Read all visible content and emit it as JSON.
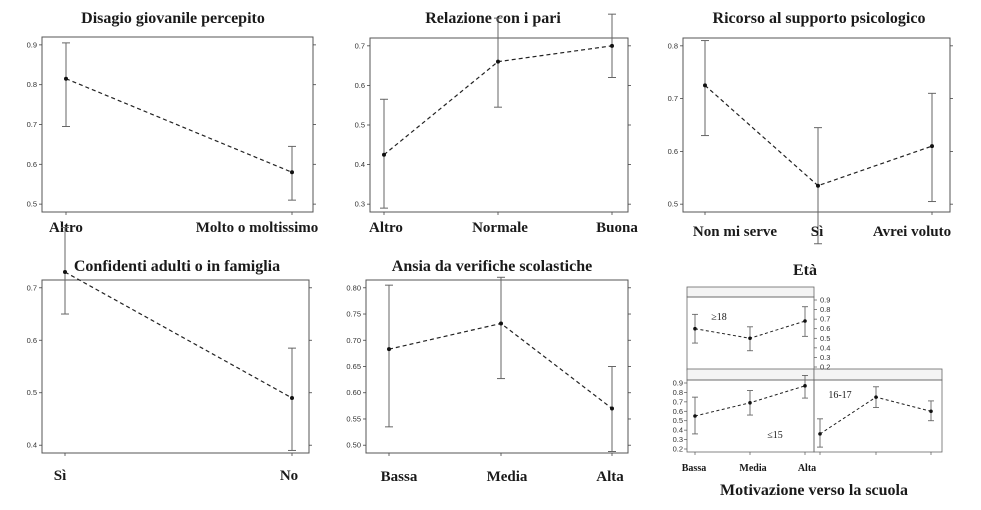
{
  "chart_data": [
    {
      "type": "line",
      "title": "Disagio giovanile percepito",
      "categories": [
        "Altro",
        "Molto o moltissimo"
      ],
      "series": [
        {
          "values": [
            0.815,
            0.58
          ],
          "lower": [
            0.695,
            0.51
          ],
          "upper": [
            0.905,
            0.645
          ]
        }
      ],
      "ylim": [
        0.5,
        0.9
      ],
      "yticks": [
        "0.5",
        "0.6",
        "0.7",
        "0.8",
        "0.9"
      ]
    },
    {
      "type": "line",
      "title": "Relazione con i pari",
      "categories": [
        "Altro",
        "Normale",
        "Buona"
      ],
      "series": [
        {
          "values": [
            0.425,
            0.66,
            0.7
          ],
          "lower": [
            0.29,
            0.545,
            0.62
          ],
          "upper": [
            0.565,
            0.77,
            0.78
          ]
        }
      ],
      "ylim": [
        0.3,
        0.7
      ],
      "yticks": [
        "0.3",
        "0.4",
        "0.5",
        "0.6",
        "0.7"
      ]
    },
    {
      "type": "line",
      "title": "Ricorso al supporto psicologico",
      "categories": [
        "Non mi serve",
        "Sì",
        "Avrei voluto"
      ],
      "series": [
        {
          "values": [
            0.725,
            0.535,
            0.61
          ],
          "lower": [
            0.63,
            0.425,
            0.505
          ],
          "upper": [
            0.81,
            0.645,
            0.71
          ]
        }
      ],
      "ylim": [
        0.5,
        0.8
      ],
      "yticks": [
        "0.5",
        "0.6",
        "0.7",
        "0.8"
      ]
    },
    {
      "type": "line",
      "title": "Confidenti adulti o in famiglia",
      "categories": [
        "Sì",
        "No"
      ],
      "series": [
        {
          "values": [
            0.73,
            0.49
          ],
          "lower": [
            0.65,
            0.39
          ],
          "upper": [
            0.815,
            0.585
          ]
        }
      ],
      "ylim": [
        0.4,
        0.7
      ],
      "yticks": [
        "0.4",
        "0.5",
        "0.6",
        "0.7"
      ]
    },
    {
      "type": "line",
      "title": "Ansia da verifiche scolastiche",
      "categories": [
        "Bassa",
        "Media",
        "Alta"
      ],
      "series": [
        {
          "values": [
            0.683,
            0.732,
            0.57
          ],
          "lower": [
            0.535,
            0.627,
            0.488
          ],
          "upper": [
            0.805,
            0.82,
            0.65
          ]
        }
      ],
      "ylim": [
        0.5,
        0.8
      ],
      "yticks": [
        "0.50",
        "0.55",
        "0.60",
        "0.65",
        "0.70",
        "0.75",
        "0.80"
      ]
    },
    {
      "type": "line",
      "title": "Età",
      "xlabel": "Motivazione verso la scuola",
      "categories": [
        "Bassa",
        "Media",
        "Alta"
      ],
      "yticks": [
        "0.2",
        "0.3",
        "0.4",
        "0.5",
        "0.6",
        "0.7",
        "0.8",
        "0.9"
      ],
      "ylim": [
        0.2,
        0.9
      ],
      "panels": [
        {
          "label": "≥18",
          "values": [
            0.6,
            0.5,
            0.68
          ],
          "lower": [
            0.45,
            0.37,
            0.52
          ],
          "upper": [
            0.75,
            0.62,
            0.83
          ]
        },
        {
          "label": "≤15",
          "values": [
            0.55,
            0.69,
            0.87
          ],
          "lower": [
            0.36,
            0.56,
            0.74
          ],
          "upper": [
            0.75,
            0.82,
            0.98
          ]
        },
        {
          "label": "16-17",
          "values": [
            0.36,
            0.75,
            0.6
          ],
          "lower": [
            0.22,
            0.64,
            0.5
          ],
          "upper": [
            0.52,
            0.86,
            0.71
          ]
        }
      ]
    }
  ]
}
